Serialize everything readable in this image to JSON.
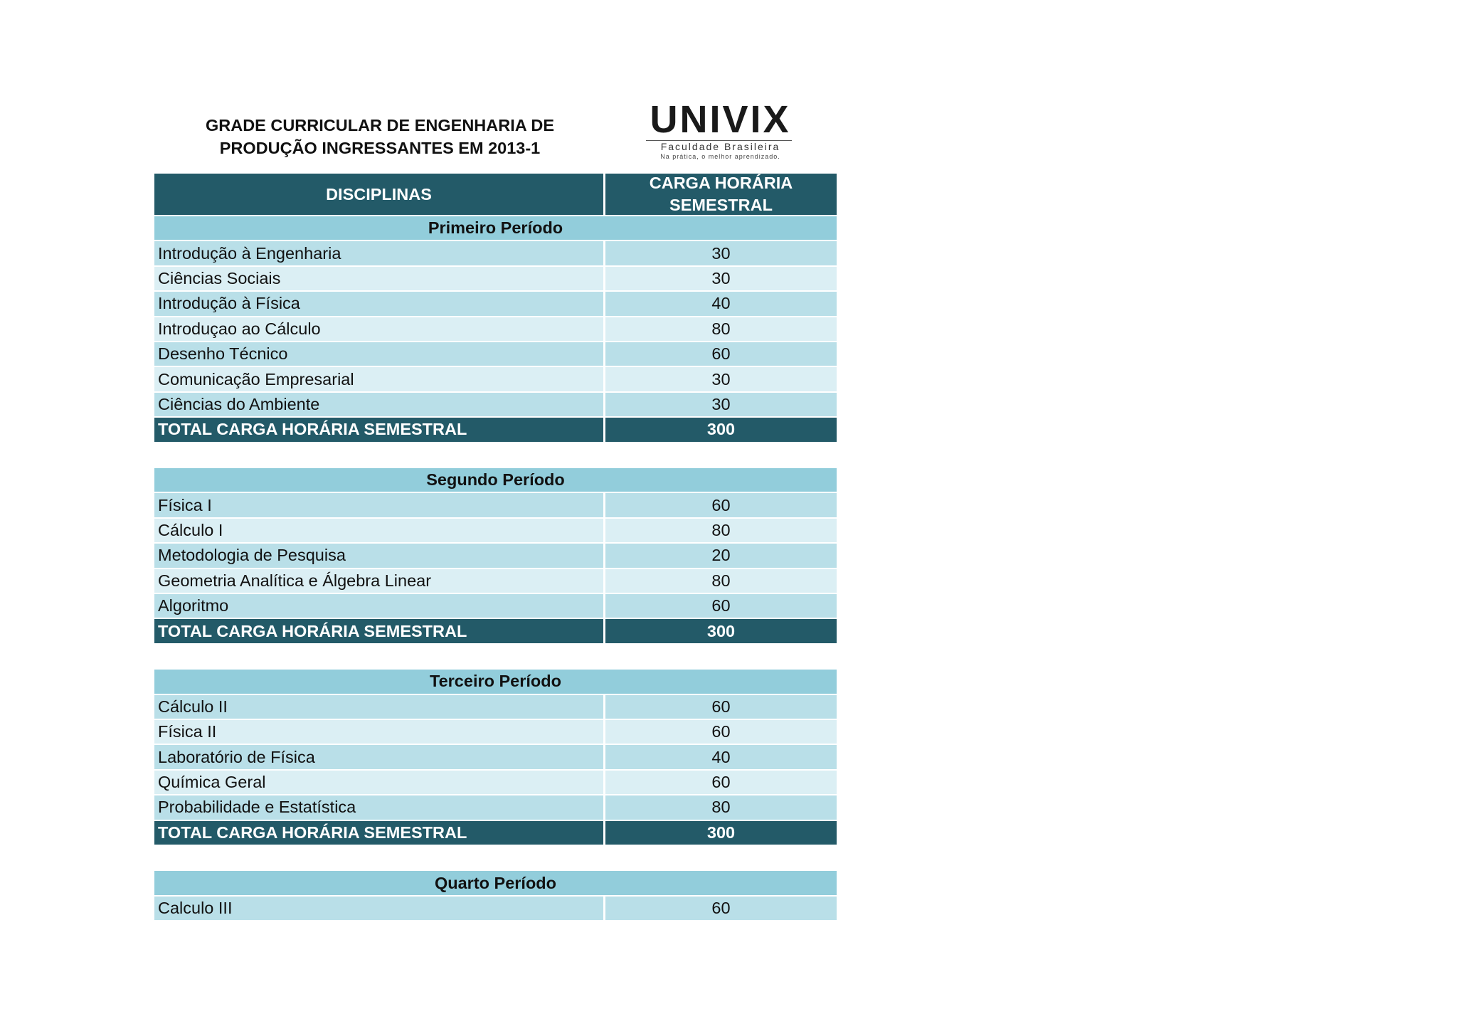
{
  "header": {
    "title": [
      "GRADE CURRICULAR DE ENGENHARIA DE",
      "PRODUÇÃO INGRESSANTES EM 2013-1"
    ]
  },
  "logo": {
    "name": "UNIVIX",
    "subtitle": "Faculdade Brasileira",
    "tagline": "Na prática, o melhor aprendizado."
  },
  "table": {
    "columns": [
      "DISCIPLINAS",
      "CARGA HORÁRIA SEMESTRAL"
    ],
    "sections": [
      {
        "title": "Primeiro Período",
        "rows": [
          [
            "Introdução à Engenharia",
            30
          ],
          [
            "Ciências Sociais",
            30
          ],
          [
            "Introdução à Física",
            40
          ],
          [
            "Introduçao ao Cálculo",
            80
          ],
          [
            "Desenho Técnico",
            60
          ],
          [
            "Comunicação Empresarial",
            30
          ],
          [
            "Ciências do Ambiente",
            30
          ]
        ],
        "total": [
          "TOTAL CARGA HORÁRIA SEMESTRAL",
          300
        ]
      },
      {
        "title": "Segundo Período",
        "rows": [
          [
            "Física I",
            60
          ],
          [
            "Cálculo I",
            80
          ],
          [
            "Metodologia de Pesquisa",
            20
          ],
          [
            "Geometria Analítica e Álgebra Linear",
            80
          ],
          [
            "Algoritmo",
            60
          ]
        ],
        "total": [
          "TOTAL CARGA HORÁRIA SEMESTRAL",
          300
        ]
      },
      {
        "title": "Terceiro Período",
        "rows": [
          [
            "Cálculo II",
            60
          ],
          [
            "Física II",
            60
          ],
          [
            "Laboratório de Física",
            40
          ],
          [
            "Química Geral",
            60
          ],
          [
            "Probabilidade e Estatística",
            80
          ]
        ],
        "total": [
          "TOTAL CARGA HORÁRIA SEMESTRAL",
          300
        ]
      },
      {
        "title": "Quarto Período",
        "rows": [
          [
            "Calculo III",
            60
          ]
        ]
      }
    ]
  }
}
